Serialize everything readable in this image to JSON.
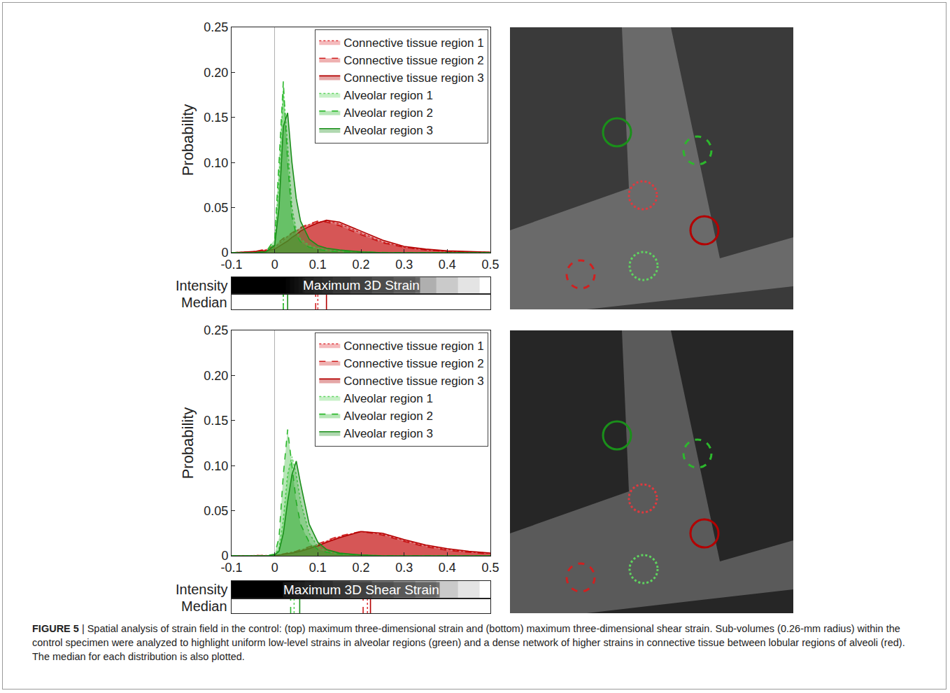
{
  "chart_data": [
    {
      "type": "line",
      "y_label": "Probability",
      "colorbar_label": "Maximum 3D Strain",
      "intensity_label": "Intensity",
      "median_label": "Median",
      "x": [
        -0.1,
        -0.05,
        -0.02,
        0,
        0.01,
        0.02,
        0.03,
        0.04,
        0.05,
        0.06,
        0.08,
        0.1,
        0.12,
        0.15,
        0.2,
        0.25,
        0.3,
        0.35,
        0.4,
        0.45,
        0.5
      ],
      "series": [
        {
          "name": "Connective tissue region 1",
          "color": "#e0393e",
          "line_style": "dotted",
          "median": 0.1,
          "values": [
            0,
            0.001,
            0.003,
            0.006,
            0.01,
            0.014,
            0.018,
            0.021,
            0.024,
            0.027,
            0.031,
            0.034,
            0.035,
            0.032,
            0.022,
            0.012,
            0.006,
            0.003,
            0.0015,
            0.0008,
            0.0003
          ]
        },
        {
          "name": "Connective tissue region 2",
          "color": "#d02020",
          "line_style": "dashed",
          "median": 0.095,
          "values": [
            0,
            0.001,
            0.004,
            0.008,
            0.012,
            0.016,
            0.019,
            0.022,
            0.025,
            0.028,
            0.032,
            0.035,
            0.034,
            0.03,
            0.02,
            0.011,
            0.006,
            0.003,
            0.0015,
            0.0008,
            0.0003
          ]
        },
        {
          "name": "Connective tissue region 3",
          "color": "#b40000",
          "line_style": "solid",
          "median": 0.12,
          "values": [
            0,
            0.001,
            0.002,
            0.004,
            0.007,
            0.01,
            0.013,
            0.017,
            0.02,
            0.024,
            0.029,
            0.033,
            0.036,
            0.034,
            0.024,
            0.014,
            0.007,
            0.004,
            0.002,
            0.001,
            0.0005
          ]
        },
        {
          "name": "Alveolar region 1",
          "color": "#5fd35f",
          "line_style": "dotted",
          "median": 0.02,
          "values": [
            0,
            0,
            0.001,
            0.01,
            0.08,
            0.18,
            0.12,
            0.05,
            0.025,
            0.015,
            0.008,
            0.005,
            0.003,
            0.002,
            0.001,
            0,
            0,
            0,
            0,
            0,
            0
          ]
        },
        {
          "name": "Alveolar region 2",
          "color": "#2db82d",
          "line_style": "dashed",
          "median": 0.02,
          "values": [
            0,
            0,
            0.001,
            0.015,
            0.1,
            0.19,
            0.1,
            0.04,
            0.02,
            0.012,
            0.006,
            0.004,
            0.002,
            0.001,
            0.0005,
            0,
            0,
            0,
            0,
            0,
            0
          ]
        },
        {
          "name": "Alveolar region 3",
          "color": "#1a8f1a",
          "line_style": "solid",
          "median": 0.03,
          "values": [
            0,
            0,
            0.001,
            0.008,
            0.05,
            0.14,
            0.155,
            0.1,
            0.06,
            0.035,
            0.015,
            0.008,
            0.005,
            0.003,
            0.001,
            0,
            0,
            0,
            0,
            0,
            0
          ]
        }
      ],
      "xlim": [
        -0.1,
        0.5
      ],
      "xticks": [
        -0.1,
        0,
        0.1,
        0.2,
        0.3,
        0.4,
        0.5
      ],
      "ylim": [
        0,
        0.25
      ],
      "yticks": [
        0,
        0.05,
        {
          "value": 0.1,
          "label": "0.10"
        },
        0.15,
        {
          "value": 0.2,
          "label": "0.20"
        },
        0.25
      ],
      "grid": false,
      "legend": "upper right"
    },
    {
      "type": "line",
      "y_label": "Probability",
      "colorbar_label": "Maximum 3D Shear Strain",
      "intensity_label": "Intensity",
      "median_label": "Median",
      "x": [
        -0.1,
        -0.05,
        -0.02,
        0,
        0.01,
        0.02,
        0.03,
        0.04,
        0.05,
        0.06,
        0.08,
        0.1,
        0.12,
        0.15,
        0.2,
        0.25,
        0.3,
        0.35,
        0.4,
        0.45,
        0.5
      ],
      "series": [
        {
          "name": "Connective tissue region 1",
          "color": "#e0393e",
          "line_style": "dotted",
          "median": 0.215,
          "values": [
            0,
            0,
            0,
            0.0005,
            0.001,
            0.002,
            0.003,
            0.004,
            0.005,
            0.006,
            0.009,
            0.012,
            0.016,
            0.021,
            0.027,
            0.024,
            0.017,
            0.011,
            0.007,
            0.004,
            0.003
          ]
        },
        {
          "name": "Connective tissue region 2",
          "color": "#d02020",
          "line_style": "dashed",
          "median": 0.205,
          "values": [
            0,
            0,
            0,
            0.0005,
            0.001,
            0.002,
            0.003,
            0.004,
            0.005,
            0.007,
            0.01,
            0.013,
            0.017,
            0.022,
            0.027,
            0.023,
            0.016,
            0.01,
            0.006,
            0.004,
            0.002
          ]
        },
        {
          "name": "Connective tissue region 3",
          "color": "#b40000",
          "line_style": "solid",
          "median": 0.222,
          "values": [
            0,
            0,
            0,
            0.0003,
            0.001,
            0.0015,
            0.002,
            0.003,
            0.004,
            0.005,
            0.008,
            0.011,
            0.015,
            0.02,
            0.027,
            0.025,
            0.018,
            0.012,
            0.008,
            0.005,
            0.003
          ]
        },
        {
          "name": "Alveolar region 1",
          "color": "#5fd35f",
          "line_style": "dotted",
          "median": 0.045,
          "values": [
            0,
            0,
            0,
            0.001,
            0.008,
            0.04,
            0.09,
            0.11,
            0.09,
            0.06,
            0.025,
            0.01,
            0.005,
            0.002,
            0.001,
            0,
            0,
            0,
            0,
            0,
            0
          ]
        },
        {
          "name": "Alveolar region 2",
          "color": "#2db82d",
          "line_style": "dashed",
          "median": 0.037,
          "values": [
            0,
            0,
            0,
            0.002,
            0.02,
            0.09,
            0.14,
            0.1,
            0.06,
            0.035,
            0.015,
            0.007,
            0.004,
            0.002,
            0.001,
            0,
            0,
            0,
            0,
            0,
            0
          ]
        },
        {
          "name": "Alveolar region 3",
          "color": "#1a8f1a",
          "line_style": "solid",
          "median": 0.058,
          "values": [
            0,
            0,
            0,
            0.001,
            0.005,
            0.025,
            0.06,
            0.09,
            0.105,
            0.08,
            0.035,
            0.015,
            0.007,
            0.003,
            0.001,
            0,
            0,
            0,
            0,
            0,
            0
          ]
        }
      ],
      "xlim": [
        -0.1,
        0.5
      ],
      "xticks": [
        -0.1,
        0,
        0.1,
        0.2,
        0.3,
        0.4,
        0.5
      ],
      "ylim": [
        0,
        0.25
      ],
      "yticks": [
        0,
        0.05,
        {
          "value": 0.1,
          "label": "0.10"
        },
        0.15,
        {
          "value": 0.2,
          "label": "0.20"
        },
        0.25
      ],
      "grid": false,
      "legend": "upper right"
    }
  ],
  "figure": {
    "label": "FIGURE 5",
    "caption": "| Spatial analysis of strain field in the control: (top) maximum three-dimensional strain and (bottom) maximum three-dimensional shear strain. Sub-volumes (0.26-mm radius) within the control specimen were analyzed to highlight uniform low-level strains in alveolar regions (green) and a dense network of higher strains in connective tissue between lobular regions of alveoli (red). The median for each distribution is also plotted."
  }
}
